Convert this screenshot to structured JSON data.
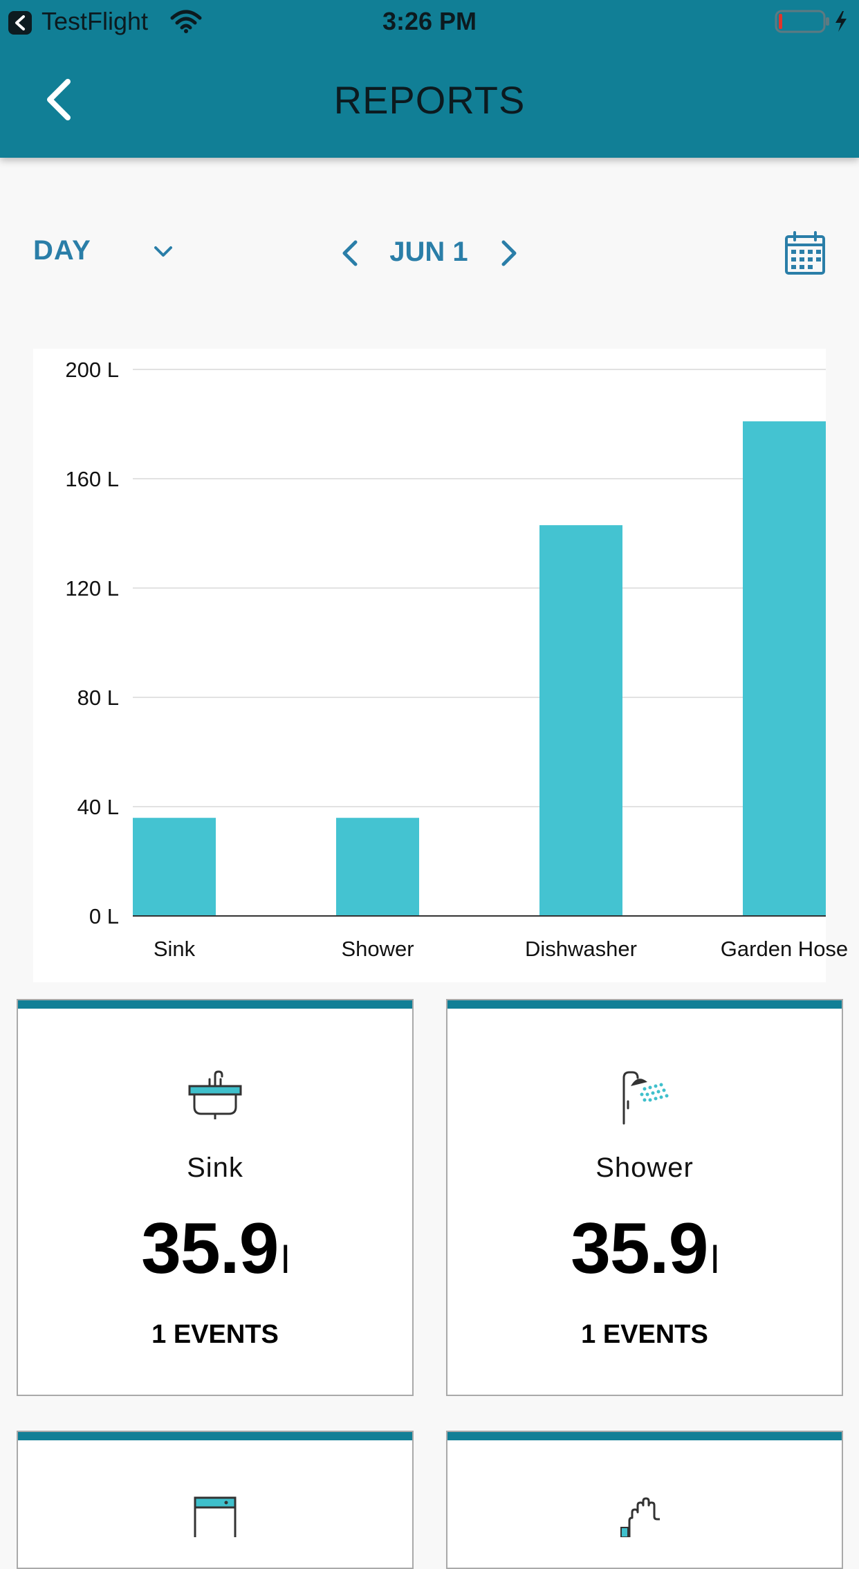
{
  "status_bar": {
    "carrier": "TestFlight",
    "time": "3:26 PM"
  },
  "header": {
    "title": "REPORTS"
  },
  "toolbar": {
    "period": "DAY",
    "date": "JUN 1"
  },
  "colors": {
    "header": "#117f96",
    "accent_text": "#2a7ea8",
    "bar": "#44c3d1"
  },
  "chart_data": {
    "type": "bar",
    "categories": [
      "Sink",
      "Shower",
      "Dishwasher",
      "Garden Hose"
    ],
    "values": [
      35.9,
      35.9,
      143,
      181
    ],
    "ylim": [
      0,
      200
    ],
    "yticks": [
      0,
      40,
      80,
      120,
      160,
      200
    ],
    "ytick_labels": [
      "0 L",
      "40 L",
      "80 L",
      "120 L",
      "160 L",
      "200 L"
    ],
    "grid": true,
    "legend": "none"
  },
  "cards": [
    {
      "name": "Sink",
      "value": "35.9",
      "unit": "l",
      "events": "1 EVENTS",
      "icon": "sink-icon"
    },
    {
      "name": "Shower",
      "value": "35.9",
      "unit": "l",
      "events": "1 EVENTS",
      "icon": "shower-icon"
    },
    {
      "name": "",
      "value": "",
      "unit": "",
      "events": "",
      "icon": "dishwasher-icon"
    },
    {
      "name": "",
      "value": "",
      "unit": "",
      "events": "",
      "icon": "garden-hose-icon"
    }
  ]
}
